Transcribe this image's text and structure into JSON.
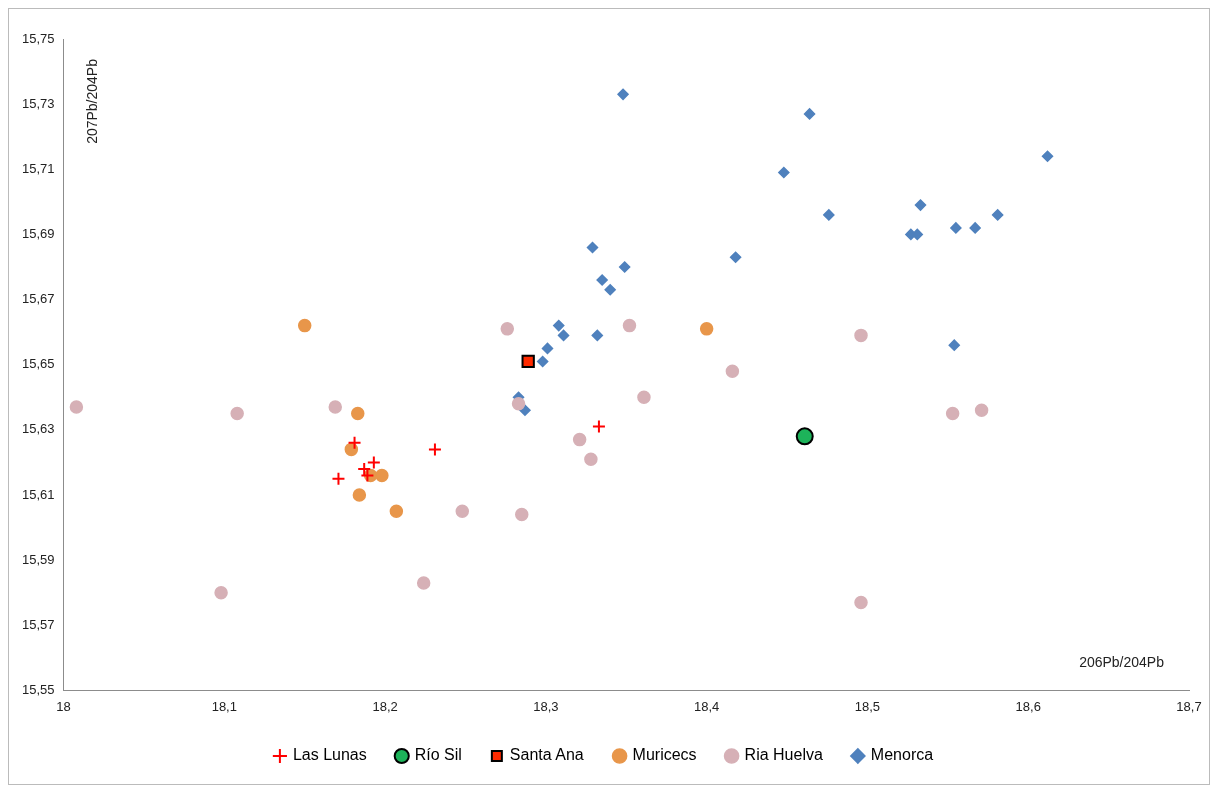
{
  "chart_data": {
    "type": "scatter",
    "xlabel": "206Pb/204Pb",
    "ylabel": "207Pb/204Pb",
    "xlim": [
      18,
      18.7
    ],
    "xticks": [
      18,
      {
        "value": 18.1,
        "label": "18,1"
      },
      {
        "value": 18.2,
        "label": "18,2"
      },
      {
        "value": 18.3,
        "label": "18,3"
      },
      {
        "value": 18.4,
        "label": "18,4"
      },
      {
        "value": 18.5,
        "label": "18,5"
      },
      {
        "value": 18.6,
        "label": "18,6"
      },
      {
        "value": 18.7,
        "label": "18,7"
      }
    ],
    "ylim": [
      15.55,
      15.75
    ],
    "yticks": [
      {
        "value": 15.55,
        "label": "15,55"
      },
      {
        "value": 15.57,
        "label": "15,57"
      },
      {
        "value": 15.59,
        "label": "15,59"
      },
      {
        "value": 15.61,
        "label": "15,61"
      },
      {
        "value": 15.63,
        "label": "15,63"
      },
      {
        "value": 15.65,
        "label": "15,65"
      },
      {
        "value": 15.67,
        "label": "15,67"
      },
      {
        "value": 15.69,
        "label": "15,69"
      },
      {
        "value": 15.71,
        "label": "15,71"
      },
      {
        "value": 15.73,
        "label": "15,73"
      },
      {
        "value": 15.75,
        "label": "15,75"
      }
    ],
    "grid": false,
    "legend": "bottom",
    "series": [
      {
        "name": "Río Sil",
        "color": "#1db35a",
        "marker": "circle",
        "x": [
          18.461
        ],
        "values": [
          15.628
        ]
      },
      {
        "name": "Santa Ana",
        "color": "#ff2a00",
        "marker": "square",
        "x": [
          18.289
        ],
        "values": [
          15.651
        ]
      },
      {
        "name": "Muricecs",
        "color": "#e8964a",
        "marker": "circle",
        "x": [
          18.15,
          18.183,
          18.179,
          18.184,
          18.191,
          18.198,
          18.207,
          18.4
        ],
        "values": [
          15.662,
          15.635,
          15.624,
          15.61,
          15.616,
          15.616,
          15.605,
          15.661
        ]
      },
      {
        "name": "Las Lunas",
        "color": "#ff0000",
        "marker": "cross",
        "x": [
          18.181,
          18.171,
          18.187,
          18.193,
          18.189,
          18.231,
          18.333
        ],
        "values": [
          15.626,
          15.615,
          15.618,
          15.62,
          15.616,
          15.624,
          15.631
        ]
      },
      {
        "name": "Ria Huelva",
        "color": "#d6b0b6",
        "marker": "circle",
        "x": [
          18.008,
          18.108,
          18.169,
          18.098,
          18.224,
          18.276,
          18.283,
          18.248,
          18.285,
          18.321,
          18.328,
          18.352,
          18.361,
          18.416,
          18.496,
          18.496,
          18.553,
          18.571
        ],
        "values": [
          15.637,
          15.635,
          15.637,
          15.58,
          15.583,
          15.661,
          15.638,
          15.605,
          15.604,
          15.627,
          15.621,
          15.662,
          15.64,
          15.648,
          15.659,
          15.577,
          15.635,
          15.636
        ]
      },
      {
        "name": "Menorca",
        "color": "#4f81bd",
        "marker": "diamond",
        "x": [
          18.348,
          18.464,
          18.448,
          18.476,
          18.533,
          18.612,
          18.555,
          18.567,
          18.581,
          18.527,
          18.531,
          18.554,
          18.329,
          18.418,
          18.349,
          18.335,
          18.34,
          18.308,
          18.311,
          18.332,
          18.301,
          18.298,
          18.283,
          18.287
        ],
        "values": [
          15.733,
          15.727,
          15.709,
          15.696,
          15.699,
          15.714,
          15.692,
          15.692,
          15.696,
          15.69,
          15.69,
          15.656,
          15.686,
          15.683,
          15.68,
          15.676,
          15.673,
          15.662,
          15.659,
          15.659,
          15.655,
          15.651,
          15.64,
          15.636
        ]
      }
    ]
  }
}
